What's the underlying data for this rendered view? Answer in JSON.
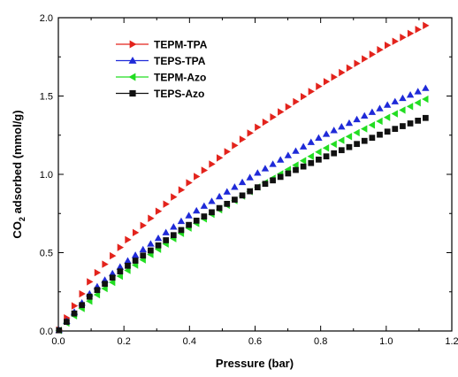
{
  "chart_data": {
    "type": "scatter",
    "xlabel": "Pressure (bar)",
    "ylabel_main": "CO",
    "ylabel_sub": "2",
    "ylabel_rest": " adsorbed (mmol/g)",
    "xlim": [
      0.0,
      1.2
    ],
    "ylim": [
      0.0,
      2.0
    ],
    "xticks": [
      "0.0",
      "0.2",
      "0.4",
      "0.6",
      "0.8",
      "1.0",
      "1.2"
    ],
    "yticks": [
      "0.0",
      "0.5",
      "1.0",
      "1.5",
      "2.0"
    ],
    "grid": false,
    "legend_position": "top-left",
    "x_range": {
      "start": 0.002,
      "end": 1.12,
      "count": 49
    },
    "series": [
      {
        "name": "TEPM-TPA",
        "color": "#e3231c",
        "marker": "triangle-right",
        "anchor_x": [
          0,
          0.1,
          0.2,
          0.4,
          0.6,
          0.8,
          1.0,
          1.12
        ],
        "anchor_y": [
          0,
          0.33,
          0.56,
          0.95,
          1.29,
          1.57,
          1.82,
          1.95
        ]
      },
      {
        "name": "TEPS-TPA",
        "color": "#1f2ad8",
        "marker": "triangle-up",
        "anchor_x": [
          0,
          0.1,
          0.2,
          0.4,
          0.6,
          0.8,
          1.0,
          1.12
        ],
        "anchor_y": [
          0,
          0.25,
          0.43,
          0.74,
          1.0,
          1.24,
          1.44,
          1.55
        ]
      },
      {
        "name": "TEPM-Azo",
        "color": "#22dd22",
        "marker": "triangle-left",
        "anchor_x": [
          0,
          0.1,
          0.2,
          0.4,
          0.6,
          0.8,
          1.0,
          1.12
        ],
        "anchor_y": [
          0,
          0.2,
          0.37,
          0.66,
          0.91,
          1.15,
          1.36,
          1.48
        ]
      },
      {
        "name": "TEPS-Azo",
        "color": "#111111",
        "marker": "square",
        "anchor_x": [
          0,
          0.1,
          0.2,
          0.4,
          0.6,
          0.8,
          1.0,
          1.12
        ],
        "anchor_y": [
          0,
          0.23,
          0.4,
          0.68,
          0.91,
          1.1,
          1.27,
          1.36
        ]
      }
    ]
  }
}
